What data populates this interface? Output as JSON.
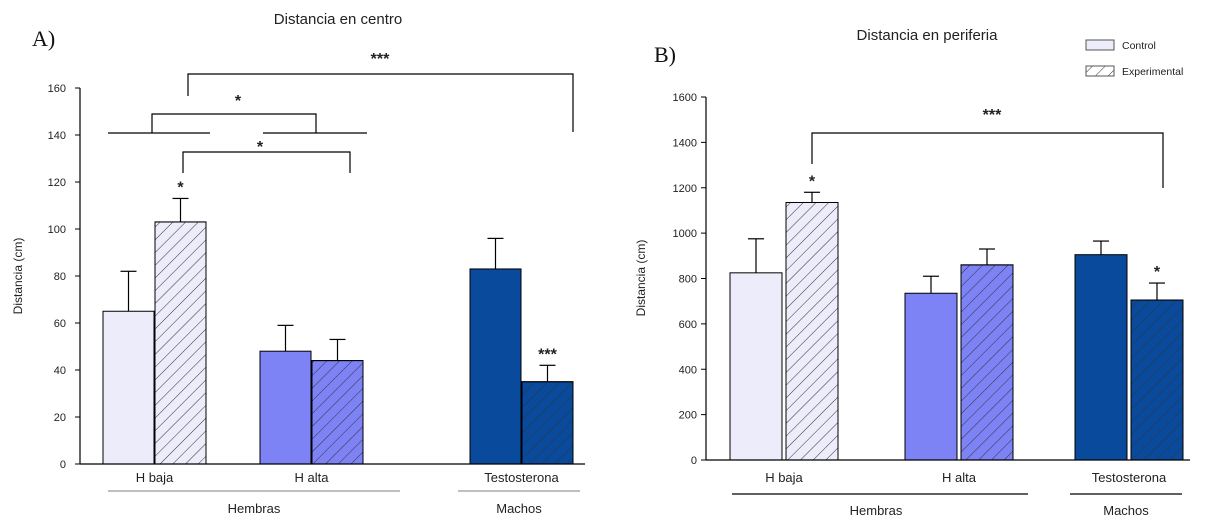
{
  "colors": {
    "h_baja": "#ececfa",
    "h_alta": "#7d82f5",
    "testosterona": "#0a4a9c",
    "axis": "#000000",
    "text": "#222222"
  },
  "legend": {
    "control": "Control",
    "experimental": "Experimental"
  },
  "chart_data": [
    {
      "type": "bar",
      "panel_label": "A)",
      "title": "Distancia en centro",
      "ylabel": "Distancia (cm)",
      "xlabel": "",
      "ylim": [
        0,
        160
      ],
      "yticks": [
        "0",
        "20",
        "40",
        "60",
        "80",
        "100",
        "120",
        "140",
        "160"
      ],
      "categories": [
        "H baja",
        "H alta",
        "Testosterona"
      ],
      "groups": [
        {
          "label": "Hembras",
          "categories": [
            "H baja",
            "H alta"
          ]
        },
        {
          "label": "Machos",
          "categories": [
            "Testosterona"
          ]
        }
      ],
      "series": [
        {
          "name": "Control",
          "values": [
            65,
            48,
            83
          ],
          "errors": [
            17,
            11,
            13
          ]
        },
        {
          "name": "Experimental",
          "values": [
            103,
            44,
            35
          ],
          "errors": [
            10,
            9,
            7
          ]
        }
      ],
      "bar_annotations": [
        {
          "category": "H baja",
          "series": "Experimental",
          "text": "*"
        },
        {
          "category": "Testosterona",
          "series": "Experimental",
          "text": "***"
        }
      ],
      "comparisons": [
        "*",
        "*",
        "***"
      ],
      "grid": false
    },
    {
      "type": "bar",
      "panel_label": "B)",
      "title": "Distancia en periferia",
      "ylabel": "Distancia (cm)",
      "xlabel": "",
      "ylim": [
        0,
        1600
      ],
      "yticks": [
        "0",
        "200",
        "400",
        "600",
        "800",
        "1000",
        "1200",
        "1400",
        "1600"
      ],
      "categories": [
        "H baja",
        "H alta",
        "Testosterona"
      ],
      "groups": [
        {
          "label": "Hembras",
          "categories": [
            "H baja",
            "H alta"
          ]
        },
        {
          "label": "Machos",
          "categories": [
            "Testosterona"
          ]
        }
      ],
      "series": [
        {
          "name": "Control",
          "values": [
            825,
            735,
            905
          ],
          "errors": [
            150,
            75,
            60
          ]
        },
        {
          "name": "Experimental",
          "values": [
            1135,
            860,
            705
          ],
          "errors": [
            45,
            70,
            75
          ]
        }
      ],
      "bar_annotations": [
        {
          "category": "H baja",
          "series": "Experimental",
          "text": "*"
        },
        {
          "category": "Testosterona",
          "series": "Experimental",
          "text": "*"
        }
      ],
      "comparisons": [
        "***"
      ],
      "legend_position": "top-right",
      "grid": false
    }
  ]
}
